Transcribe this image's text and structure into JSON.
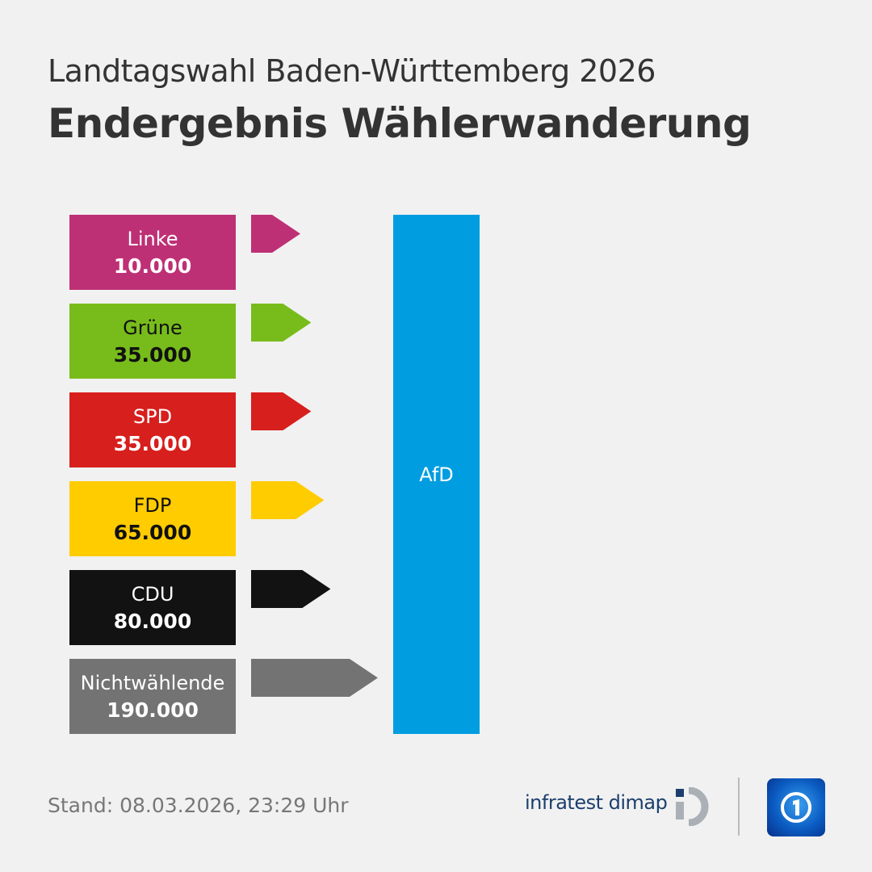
{
  "header": {
    "subtitle": "Landtagswahl Baden-Württemberg 2026",
    "title": "Endergebnis Wählerwanderung"
  },
  "chart_data": {
    "type": "bar",
    "title": "Endergebnis Wählerwanderung",
    "subtitle": "Landtagswahl Baden-Württemberg 2026",
    "target": "AfD",
    "target_color": "#009de0",
    "sources": [
      {
        "name": "Linke",
        "label": "10.000",
        "value": 10000,
        "color": "#be3075",
        "text_color": "#ffffff"
      },
      {
        "name": "Grüne",
        "label": "35.000",
        "value": 35000,
        "color": "#78bc1b",
        "text_color": "#111111"
      },
      {
        "name": "SPD",
        "label": "35.000",
        "value": 35000,
        "color": "#d71f1d",
        "text_color": "#ffffff"
      },
      {
        "name": "FDP",
        "label": "65.000",
        "value": 65000,
        "color": "#ffcc00",
        "text_color": "#111111"
      },
      {
        "name": "CDU",
        "label": "80.000",
        "value": 80000,
        "color": "#121212",
        "text_color": "#ffffff"
      },
      {
        "name": "Nichtwählende",
        "label": "190.000",
        "value": 190000,
        "color": "#737373",
        "text_color": "#ffffff"
      }
    ]
  },
  "footer": {
    "stand": "Stand:  08.03.2026, 23:29 Uhr",
    "source": "infratest dimap"
  }
}
